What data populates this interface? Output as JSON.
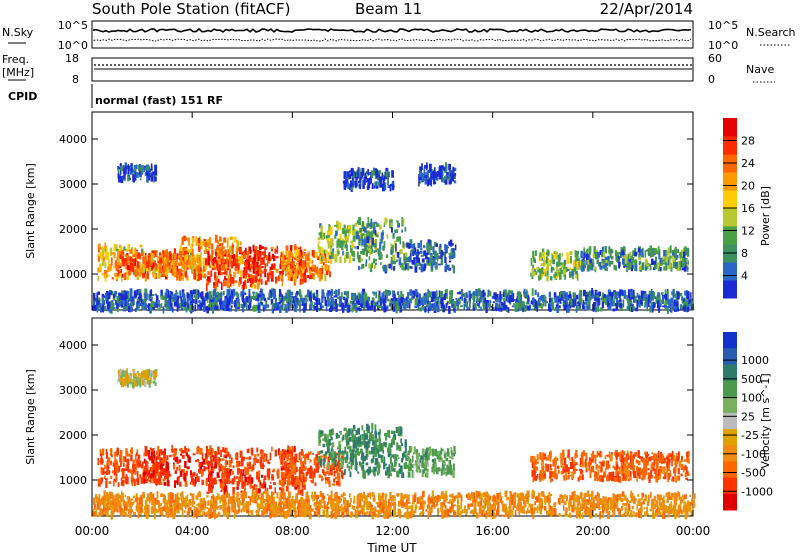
{
  "header": {
    "station": "South Pole Station (fitACF)",
    "beam": "Beam 11",
    "date": "22/Apr/2014"
  },
  "top_panels": {
    "nsky_label": "N.Sky",
    "nsearch_label": "N.Search",
    "noise_ticks": [
      "10^5",
      "10^0"
    ],
    "freq_label": "Freq.",
    "freq_unit": "[MHz]",
    "freq_ticks": [
      "18",
      "8"
    ],
    "nave_label": "Nave",
    "nave_ticks": [
      "60",
      "0"
    ],
    "cpid_label": "CPID",
    "cpid_text": "normal (fast) 151 RF"
  },
  "colors": {
    "power_scale": [
      "#1a2bd6",
      "#2a66c8",
      "#3d8f5e",
      "#4aa047",
      "#b7c92e",
      "#ffcc00",
      "#ff9900",
      "#ff6600",
      "#ff2a00",
      "#e80000"
    ],
    "velocity_scale": [
      "#1133cc",
      "#2a5cb0",
      "#2f7a6a",
      "#4a9a4a",
      "#78b060",
      "#bbbbbb",
      "#e0a000",
      "#f08a10",
      "#ff6600",
      "#ff3300",
      "#e00000"
    ]
  },
  "chart_data": [
    {
      "type": "heatmap",
      "name": "power",
      "ylabel": "Slant Range [km]",
      "yticks": [
        1000,
        2000,
        3000,
        4000
      ],
      "ylim": [
        200,
        4600
      ],
      "xlim": [
        0,
        24
      ],
      "colorbar": {
        "label": "Power [dB]",
        "ticks": [
          4,
          8,
          12,
          16,
          20,
          24,
          28
        ],
        "range": [
          0,
          32
        ]
      },
      "blobs": [
        {
          "t0": 0.2,
          "t1": 2.0,
          "r0": 900,
          "r1": 1650,
          "value": 20
        },
        {
          "t0": 1.0,
          "t1": 3.5,
          "r0": 950,
          "r1": 1500,
          "value": 26
        },
        {
          "t0": 2.0,
          "t1": 4.5,
          "r0": 900,
          "r1": 1400,
          "value": 24
        },
        {
          "t0": 3.5,
          "t1": 6.0,
          "r0": 1100,
          "r1": 1800,
          "value": 22
        },
        {
          "t0": 4.5,
          "t1": 6.8,
          "r0": 700,
          "r1": 1500,
          "value": 28
        },
        {
          "t0": 6.0,
          "t1": 8.5,
          "r0": 800,
          "r1": 1600,
          "value": 29
        },
        {
          "t0": 7.5,
          "t1": 9.5,
          "r0": 900,
          "r1": 1500,
          "value": 24
        },
        {
          "t0": 9.0,
          "t1": 11.5,
          "r0": 1300,
          "r1": 2100,
          "value": 14
        },
        {
          "t0": 10.5,
          "t1": 12.5,
          "r0": 1100,
          "r1": 2200,
          "value": 10
        },
        {
          "t0": 12.5,
          "t1": 14.5,
          "r0": 1100,
          "r1": 1700,
          "value": 6
        },
        {
          "t0": 17.5,
          "t1": 19.5,
          "r0": 900,
          "r1": 1500,
          "value": 14
        },
        {
          "t0": 19.5,
          "t1": 23.8,
          "r0": 1100,
          "r1": 1550,
          "value": 10
        },
        {
          "t0": 1.0,
          "t1": 2.5,
          "r0": 3100,
          "r1": 3400,
          "value": 5
        },
        {
          "t0": 10.0,
          "t1": 12.0,
          "r0": 2900,
          "r1": 3300,
          "value": 4
        },
        {
          "t0": 13.0,
          "t1": 14.5,
          "r0": 3000,
          "r1": 3400,
          "value": 4
        },
        {
          "t0": 0.0,
          "t1": 24.0,
          "r0": 200,
          "r1": 600,
          "value": 6
        }
      ]
    },
    {
      "type": "heatmap",
      "name": "velocity",
      "ylabel": "Slant Range [km]",
      "yticks": [
        1000,
        2000,
        3000,
        4000
      ],
      "ylim": [
        200,
        4600
      ],
      "xlim": [
        0,
        24
      ],
      "xlabel": "Time UT",
      "xticks": [
        "00:00",
        "04:00",
        "08:00",
        "12:00",
        "16:00",
        "20:00",
        "00:00"
      ],
      "colorbar": {
        "label": "Velocity [m s^-1]",
        "ticks": [
          "1000",
          "500",
          "100",
          "25",
          "-25",
          "-100",
          "-500",
          "-1000"
        ]
      },
      "blobs": [
        {
          "t0": 0.2,
          "t1": 3.0,
          "r0": 900,
          "r1": 1650,
          "value": -300
        },
        {
          "t0": 2.0,
          "t1": 5.5,
          "r0": 900,
          "r1": 1700,
          "value": -400
        },
        {
          "t0": 4.5,
          "t1": 8.5,
          "r0": 700,
          "r1": 1700,
          "value": -350
        },
        {
          "t0": 7.5,
          "t1": 10.0,
          "r0": 900,
          "r1": 1600,
          "value": -250
        },
        {
          "t0": 9.0,
          "t1": 11.5,
          "r0": 1300,
          "r1": 2100,
          "value": 200
        },
        {
          "t0": 10.0,
          "t1": 12.5,
          "r0": 1100,
          "r1": 2200,
          "value": 300
        },
        {
          "t0": 12.5,
          "t1": 14.5,
          "r0": 1100,
          "r1": 1700,
          "value": 150
        },
        {
          "t0": 17.5,
          "t1": 23.8,
          "r0": 1000,
          "r1": 1600,
          "value": -200
        },
        {
          "t0": 1.0,
          "t1": 2.5,
          "r0": 3100,
          "r1": 3400,
          "value": 40
        },
        {
          "t0": 0.0,
          "t1": 24.0,
          "r0": 200,
          "r1": 700,
          "value": -60
        }
      ]
    }
  ]
}
